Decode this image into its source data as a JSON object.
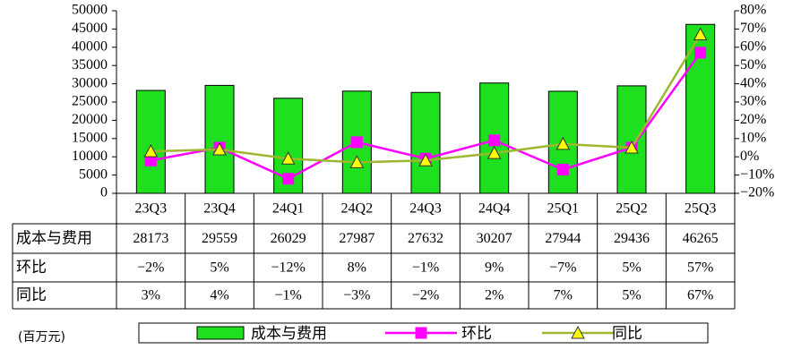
{
  "chart_data": {
    "type": "bar",
    "categories": [
      "23Q3",
      "23Q4",
      "24Q1",
      "24Q2",
      "24Q3",
      "24Q4",
      "25Q1",
      "25Q2",
      "25Q3"
    ],
    "series": [
      {
        "name": "成本与费用",
        "color": "#1fe01f",
        "values": [
          28173,
          29559,
          26029,
          27987,
          27632,
          30207,
          27944,
          29436,
          46265
        ]
      },
      {
        "name": "环比",
        "type": "line",
        "marker": "square",
        "axis": "y2",
        "color": "#ff00ff",
        "marker_fill": "#ff00ff",
        "values": [
          -2,
          5,
          -12,
          8,
          -1,
          9,
          -7,
          5,
          57
        ],
        "value_labels": [
          "−2%",
          "5%",
          "−12%",
          "8%",
          "−1%",
          "9%",
          "−7%",
          "5%",
          "57%"
        ]
      },
      {
        "name": "同比",
        "type": "line",
        "marker": "triangle",
        "axis": "y2",
        "color": "#9cb82e",
        "marker_fill": "#ffff00",
        "values": [
          3,
          4,
          -1,
          -3,
          -2,
          2,
          7,
          5,
          67
        ],
        "value_labels": [
          "3%",
          "4%",
          "−1%",
          "−3%",
          "−2%",
          "2%",
          "7%",
          "5%",
          "67%"
        ]
      }
    ],
    "ylim": [
      0,
      50000
    ],
    "yticks": [
      0,
      5000,
      10000,
      15000,
      20000,
      25000,
      30000,
      35000,
      40000,
      45000,
      50000
    ],
    "y2lim": [
      -20,
      80
    ],
    "y2ticks": [
      {
        "value": -20,
        "label": "−20%"
      },
      {
        "value": -10,
        "label": "−10%"
      },
      {
        "value": 0,
        "label": "0%"
      },
      {
        "value": 10,
        "label": "10%"
      },
      {
        "value": 20,
        "label": "20%"
      },
      {
        "value": 30,
        "label": "30%"
      },
      {
        "value": 40,
        "label": "40%"
      },
      {
        "value": 50,
        "label": "50%"
      },
      {
        "value": 60,
        "label": "60%"
      },
      {
        "value": 70,
        "label": "70%"
      },
      {
        "value": 80,
        "label": "80%"
      }
    ],
    "unit_label": "(百万元)",
    "grid": false
  }
}
